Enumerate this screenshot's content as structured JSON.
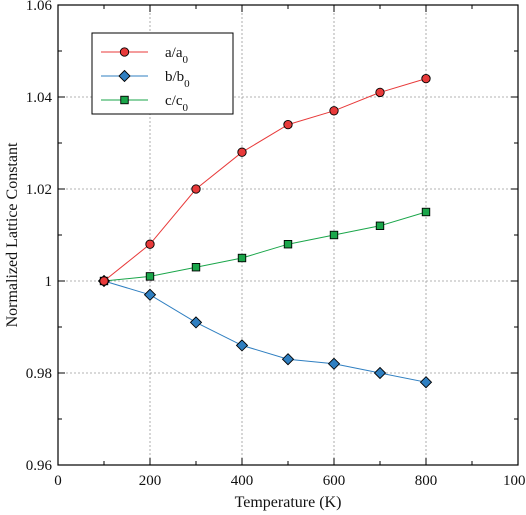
{
  "chart_data": {
    "type": "line",
    "title": "",
    "xlabel": "Temperature (K)",
    "ylabel": "Normalized Lattice Constant",
    "xlim": [
      0,
      1000
    ],
    "ylim": [
      0.96,
      1.06
    ],
    "xticks": [
      0,
      200,
      400,
      600,
      800,
      1000
    ],
    "yticks": [
      0.96,
      0.98,
      1,
      1.02,
      1.04,
      1.06
    ],
    "xtick_labels": [
      "0",
      "200",
      "400",
      "600",
      "800",
      "1000"
    ],
    "ytick_labels": [
      "0.96",
      "0.98",
      "1",
      "1.02",
      "1.04",
      "1.06"
    ],
    "grid": true,
    "legend_position": "top-left",
    "x": [
      100,
      200,
      300,
      400,
      500,
      600,
      700,
      800
    ],
    "series": [
      {
        "name": "a/a0",
        "label_main": "a/a",
        "label_sub": "0",
        "color": "#e83a3a",
        "marker": "circle",
        "values": [
          1.0,
          1.008,
          1.02,
          1.028,
          1.034,
          1.037,
          1.041,
          1.044
        ]
      },
      {
        "name": "b/b0",
        "label_main": "b/b",
        "label_sub": "0",
        "color": "#2f7fc1",
        "marker": "diamond",
        "values": [
          1.0,
          0.997,
          0.991,
          0.986,
          0.983,
          0.982,
          0.98,
          0.978
        ]
      },
      {
        "name": "c/c0",
        "label_main": "c/c",
        "label_sub": "0",
        "color": "#1aa64a",
        "marker": "square",
        "values": [
          1.0,
          1.001,
          1.003,
          1.005,
          1.008,
          1.01,
          1.012,
          1.015
        ]
      }
    ]
  }
}
